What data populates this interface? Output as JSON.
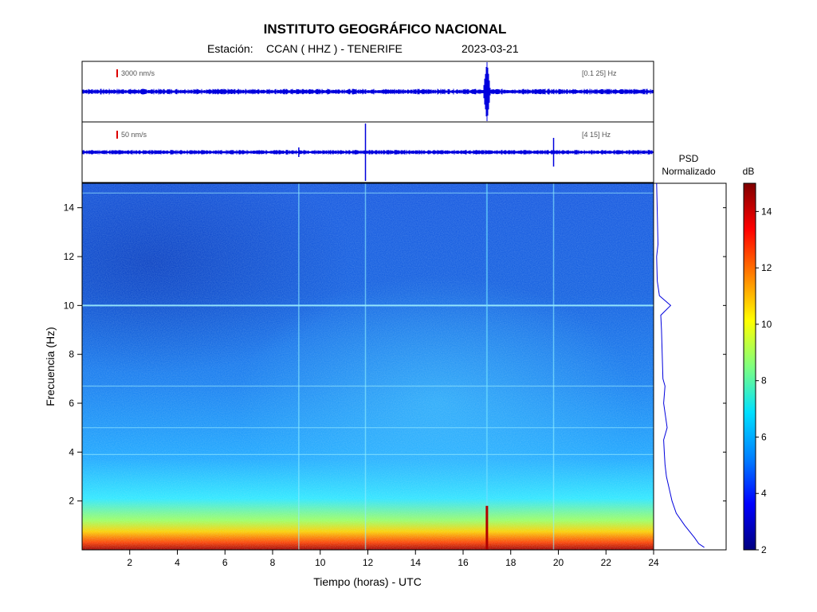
{
  "header": {
    "title": "INSTITUTO GEOGRÁFICO NACIONAL",
    "station_prefix": "Estación:",
    "station": "CCAN ( HHZ ) - TENERIFE",
    "date": "2023-03-21"
  },
  "psd": {
    "label_line1": "PSD",
    "label_line2": "Normalizado"
  },
  "colors": {
    "trace": "#0000dd",
    "scale_marker": "#dd0000",
    "colormap": [
      "#00007f",
      "#0000ff",
      "#0080ff",
      "#00e0ff",
      "#7fff7f",
      "#ffff00",
      "#ff8000",
      "#ff0000",
      "#7f0000"
    ]
  },
  "chart_data": [
    {
      "type": "line",
      "name": "waveform-top",
      "scale_label": "3000 nm/s",
      "band_label": "[0.1 25] Hz",
      "xlim": [
        0,
        24
      ],
      "events_hours": [
        17.0
      ]
    },
    {
      "type": "line",
      "name": "waveform-bottom",
      "scale_label": "50 nm/s",
      "band_label": "[4 15] Hz",
      "xlim": [
        0,
        24
      ],
      "events_hours": [
        9.1,
        11.9,
        19.8
      ]
    },
    {
      "type": "heatmap",
      "name": "spectrogram",
      "xlabel": "Tiempo (horas) - UTC",
      "ylabel": "Frecuencia (Hz)",
      "xlim": [
        0,
        24
      ],
      "ylim": [
        0,
        15
      ],
      "xticks": [
        2,
        4,
        6,
        8,
        10,
        12,
        14,
        16,
        18,
        20,
        22,
        24
      ],
      "yticks": [
        2,
        4,
        6,
        8,
        10,
        12,
        14
      ],
      "persistent_lines_hz": [
        10,
        5,
        6.7,
        14.6,
        3.9
      ],
      "vertical_lines_hours": [
        9.1,
        11.9,
        17.0,
        19.8
      ],
      "colorbar": {
        "label": "dB",
        "range": [
          2,
          15
        ],
        "ticks": [
          2,
          4,
          6,
          8,
          10,
          12,
          14
        ]
      }
    },
    {
      "type": "line",
      "name": "psd-normalized",
      "frequency_hz": [
        15,
        12.5,
        12,
        11,
        10.4,
        10.0,
        9.6,
        9,
        8,
        7,
        6.7,
        6,
        5.0,
        4.5,
        4,
        3.5,
        3,
        2.5,
        2,
        1.5,
        1.0,
        0.5,
        0.25,
        0.1
      ],
      "normalized_power": [
        0.02,
        0.04,
        0.02,
        0.03,
        0.06,
        0.22,
        0.08,
        0.09,
        0.1,
        0.11,
        0.14,
        0.12,
        0.17,
        0.12,
        0.13,
        0.14,
        0.16,
        0.2,
        0.24,
        0.3,
        0.42,
        0.56,
        0.62,
        0.7
      ]
    }
  ]
}
